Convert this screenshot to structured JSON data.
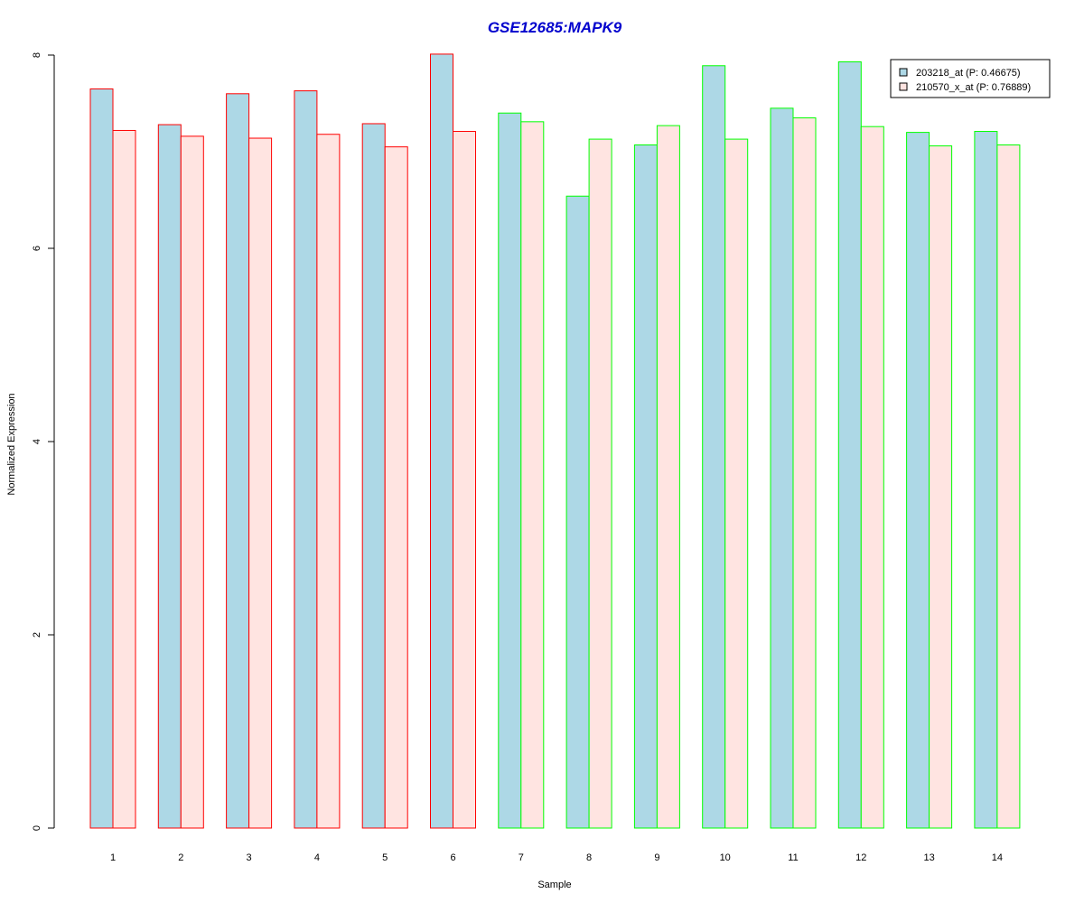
{
  "chart_data": {
    "type": "bar",
    "title": "GSE12685:MAPK9",
    "xlabel": "Sample",
    "ylabel": "Normalized Expression",
    "ylim": [
      0,
      8
    ],
    "yticks": [
      0,
      2,
      4,
      6,
      8
    ],
    "grid": false,
    "legend_position": "top-right",
    "categories": [
      "1",
      "2",
      "3",
      "4",
      "5",
      "6",
      "7",
      "8",
      "9",
      "10",
      "11",
      "12",
      "13",
      "14"
    ],
    "series": [
      {
        "name": "203218_at (P: 0.46675)",
        "fill": "#add8e6",
        "values": [
          7.65,
          7.28,
          7.6,
          7.63,
          7.29,
          8.01,
          7.4,
          6.54,
          7.07,
          7.89,
          7.45,
          7.93,
          7.2,
          7.21
        ]
      },
      {
        "name": "210570_x_at (P: 0.76889)",
        "fill": "#ffe4e1",
        "values": [
          7.22,
          7.16,
          7.14,
          7.18,
          7.05,
          7.21,
          7.31,
          7.13,
          7.27,
          7.13,
          7.35,
          7.26,
          7.06,
          7.07
        ]
      }
    ],
    "group_border_colors": [
      "#ff0000",
      "#ff0000",
      "#ff0000",
      "#ff0000",
      "#ff0000",
      "#ff0000",
      "#00ff00",
      "#00ff00",
      "#00ff00",
      "#00ff00",
      "#00ff00",
      "#00ff00",
      "#00ff00",
      "#00ff00"
    ],
    "title_color": "#0000cd"
  }
}
